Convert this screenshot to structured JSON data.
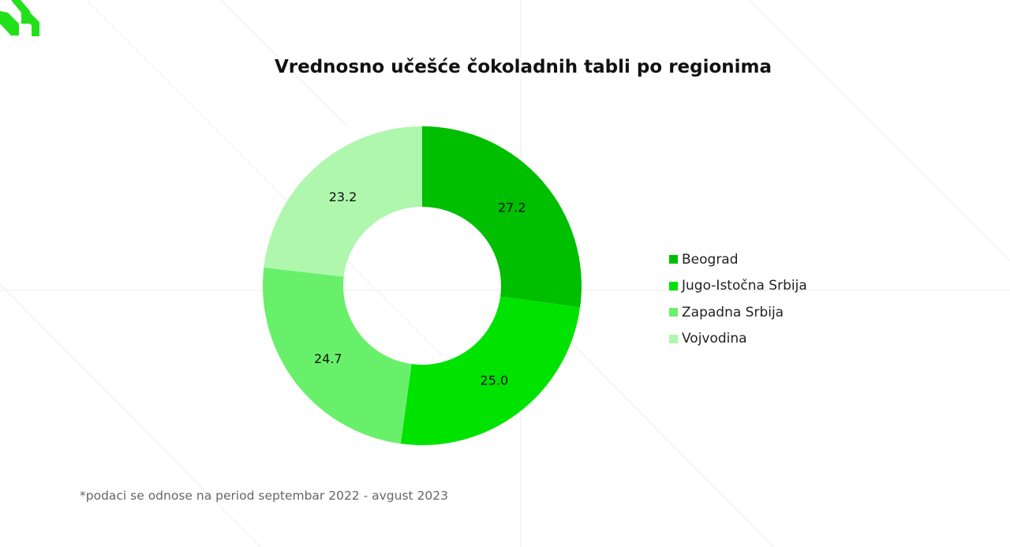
{
  "colors": {
    "background": "#ffffff",
    "logo": "#22e01a",
    "title_text": "#111111",
    "legend_text": "#222222",
    "footnote_text": "#666666",
    "watermark_lines": "#f1f1f1"
  },
  "logo": {
    "icon": "brand-logo-icon"
  },
  "chart_data": {
    "type": "pie",
    "style": "donut",
    "title": "Vrednosno učešće čokoladnih tabli po regionima",
    "start_angle_deg": 0,
    "direction": "clockwise",
    "legend_position": "right",
    "slices": [
      {
        "label": "Beograd",
        "value": 27.2,
        "value_label": "27.2",
        "color": "#00be00"
      },
      {
        "label": "Jugo-Istočna Srbija",
        "value": 25.0,
        "value_label": "25.0",
        "color": "#00e300"
      },
      {
        "label": "Zapadna Srbija",
        "value": 24.7,
        "value_label": "24.7",
        "color": "#69f06a"
      },
      {
        "label": "Vojvodina",
        "value": 23.2,
        "value_label": "23.2",
        "color": "#aff7ad"
      }
    ]
  },
  "footnote": "*podaci se odnose na period septembar 2022 - avgust 2023"
}
